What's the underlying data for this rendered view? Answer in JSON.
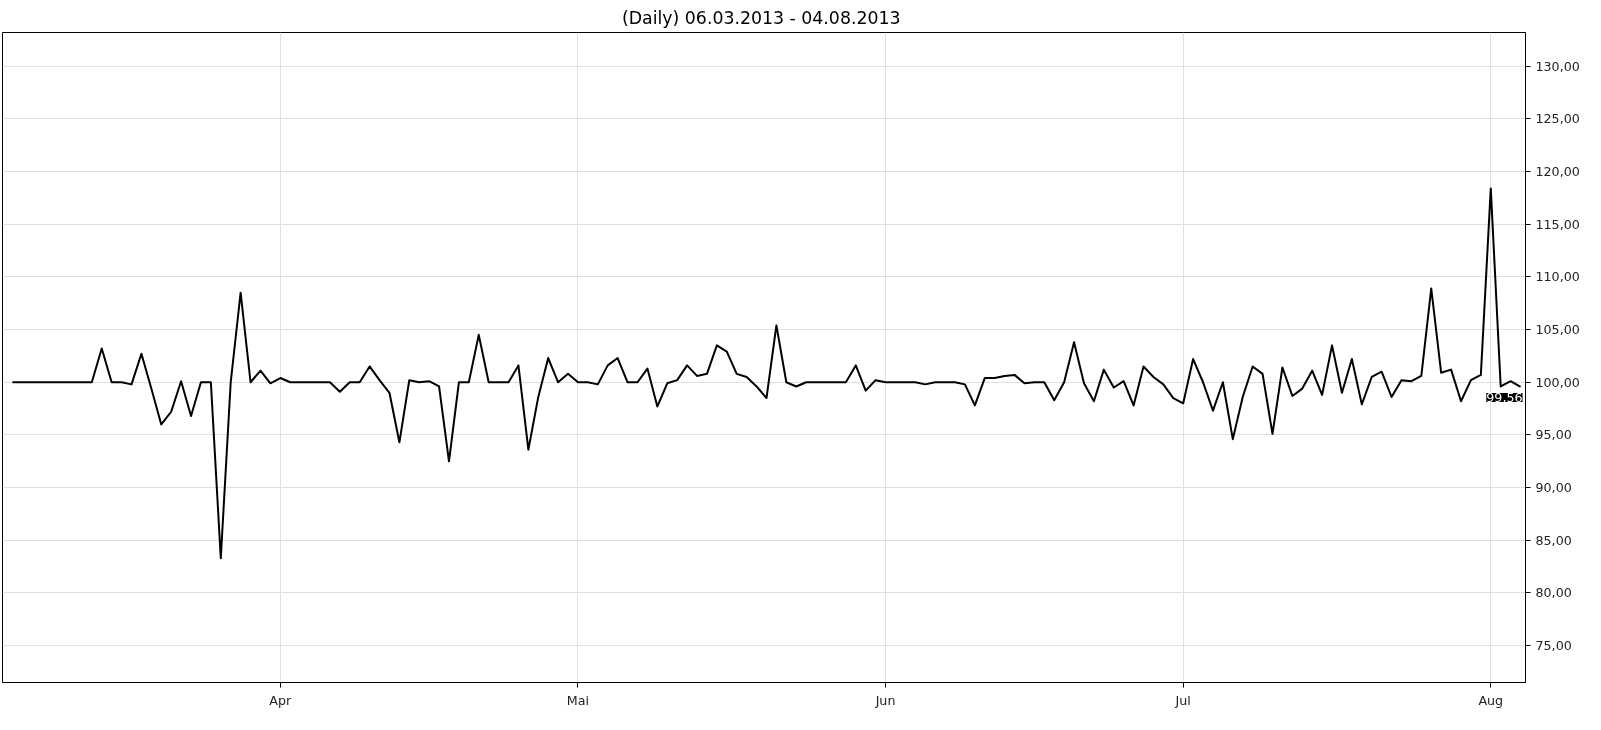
{
  "chart_data": {
    "type": "line",
    "title": "(Daily)  06.03.2013 - 04.08.2013",
    "x": [
      "2013-03-05",
      "2013-03-06",
      "2013-03-07",
      "2013-03-08",
      "2013-03-09",
      "2013-03-10",
      "2013-03-11",
      "2013-03-12",
      "2013-03-13",
      "2013-03-14",
      "2013-03-15",
      "2013-03-16",
      "2013-03-17",
      "2013-03-18",
      "2013-03-19",
      "2013-03-20",
      "2013-03-21",
      "2013-03-22",
      "2013-03-23",
      "2013-03-24",
      "2013-03-25",
      "2013-03-26",
      "2013-03-27",
      "2013-03-28",
      "2013-03-29",
      "2013-03-30",
      "2013-03-31",
      "2013-04-01",
      "2013-04-02",
      "2013-04-03",
      "2013-04-04",
      "2013-04-05",
      "2013-04-06",
      "2013-04-07",
      "2013-04-08",
      "2013-04-09",
      "2013-04-10",
      "2013-04-11",
      "2013-04-12",
      "2013-04-13",
      "2013-04-14",
      "2013-04-15",
      "2013-04-16",
      "2013-04-17",
      "2013-04-18",
      "2013-04-19",
      "2013-04-20",
      "2013-04-21",
      "2013-04-22",
      "2013-04-23",
      "2013-04-24",
      "2013-04-25",
      "2013-04-26",
      "2013-04-27",
      "2013-04-28",
      "2013-04-29",
      "2013-04-30",
      "2013-05-01",
      "2013-05-02",
      "2013-05-03",
      "2013-05-04",
      "2013-05-05",
      "2013-05-06",
      "2013-05-07",
      "2013-05-08",
      "2013-05-09",
      "2013-05-10",
      "2013-05-11",
      "2013-05-12",
      "2013-05-13",
      "2013-05-14",
      "2013-05-15",
      "2013-05-16",
      "2013-05-17",
      "2013-05-18",
      "2013-05-19",
      "2013-05-20",
      "2013-05-21",
      "2013-05-22",
      "2013-05-23",
      "2013-05-24",
      "2013-05-25",
      "2013-05-26",
      "2013-05-27",
      "2013-05-28",
      "2013-05-29",
      "2013-05-30",
      "2013-05-31",
      "2013-06-01",
      "2013-06-02",
      "2013-06-03",
      "2013-06-04",
      "2013-06-05",
      "2013-06-06",
      "2013-06-07",
      "2013-06-08",
      "2013-06-09",
      "2013-06-10",
      "2013-06-11",
      "2013-06-12",
      "2013-06-13",
      "2013-06-14",
      "2013-06-15",
      "2013-06-16",
      "2013-06-17",
      "2013-06-18",
      "2013-06-19",
      "2013-06-20",
      "2013-06-21",
      "2013-06-22",
      "2013-06-23",
      "2013-06-24",
      "2013-06-25",
      "2013-06-26",
      "2013-06-27",
      "2013-06-28",
      "2013-06-29",
      "2013-06-30",
      "2013-07-01",
      "2013-07-02",
      "2013-07-03",
      "2013-07-04",
      "2013-07-05",
      "2013-07-06",
      "2013-07-07",
      "2013-07-08",
      "2013-07-09",
      "2013-07-10",
      "2013-07-11",
      "2013-07-12",
      "2013-07-13",
      "2013-07-14",
      "2013-07-15",
      "2013-07-16",
      "2013-07-17",
      "2013-07-18",
      "2013-07-19",
      "2013-07-20",
      "2013-07-21",
      "2013-07-22",
      "2013-07-23",
      "2013-07-24",
      "2013-07-25",
      "2013-07-26",
      "2013-07-27",
      "2013-07-28",
      "2013-07-29",
      "2013-07-30",
      "2013-07-31",
      "2013-08-01",
      "2013-08-02",
      "2013-08-03",
      "2013-08-04"
    ],
    "series": [
      {
        "color": "#000000",
        "values": [
          100,
          100,
          100,
          100,
          100,
          100,
          100,
          100,
          100,
          103.2,
          100,
          100,
          99.8,
          102.7,
          99.4,
          96.0,
          97.2,
          100.1,
          96.8,
          100,
          100,
          83.3,
          100,
          108.5,
          100,
          101.1,
          99.9,
          100.4,
          100,
          100,
          100,
          100,
          100,
          99.1,
          100,
          100,
          101.5,
          100.2,
          99.0,
          94.3,
          100.2,
          100,
          100.1,
          99.6,
          92.5,
          100,
          100,
          104.5,
          100,
          100,
          100,
          101.6,
          93.6,
          98.6,
          102.3,
          100,
          100.8,
          100,
          100,
          99.8,
          101.6,
          102.3,
          100,
          100,
          101.3,
          97.7,
          99.9,
          100.2,
          101.6,
          100.6,
          100.8,
          103.5,
          102.9,
          100.8,
          100.5,
          99.6,
          98.5,
          105.4,
          100,
          99.6,
          100,
          100,
          100,
          100,
          100,
          101.6,
          99.2,
          100.2,
          100,
          100,
          100,
          100,
          99.8,
          100,
          100,
          100,
          99.8,
          97.8,
          100.4,
          100.4,
          100.6,
          100.7,
          99.9,
          100,
          100,
          98.3,
          100,
          103.8,
          99.9,
          98.2,
          101.2,
          99.5,
          100.1,
          97.8,
          101.5,
          100.5,
          99.8,
          98.5,
          98.0,
          102.2,
          100,
          97.3,
          100,
          94.6,
          98.6,
          101.5,
          100.8,
          95.1,
          101.4,
          98.7,
          99.4,
          101.1,
          98.8,
          103.5,
          99.0,
          102.2,
          97.9,
          100.5,
          101.0,
          98.6,
          100.2,
          100.1,
          100.6,
          108.9,
          100.9,
          101.2,
          98.2,
          100.2,
          100.7,
          118.4,
          99.6,
          100.1,
          99.56
        ]
      }
    ],
    "xlim": [
      "2013-03-04",
      "2013-08-04T12:00"
    ],
    "xticks": [
      {
        "value": "2013-04-01",
        "label": "Apr"
      },
      {
        "value": "2013-05-01",
        "label": "Mai"
      },
      {
        "value": "2013-06-01",
        "label": "Jun"
      },
      {
        "value": "2013-07-01",
        "label": "Jul"
      },
      {
        "value": "2013-08-01",
        "label": "Aug"
      }
    ],
    "ylim": [
      71.5,
      133.2
    ],
    "yticks": [
      {
        "value": 75,
        "label": "75,00"
      },
      {
        "value": 80,
        "label": "80,00"
      },
      {
        "value": 85,
        "label": "85,00"
      },
      {
        "value": 90,
        "label": "90,00"
      },
      {
        "value": 95,
        "label": "95,00"
      },
      {
        "value": 100,
        "label": "100,00"
      },
      {
        "value": 105,
        "label": "105,00"
      },
      {
        "value": 110,
        "label": "110,00"
      },
      {
        "value": 115,
        "label": "115,00"
      },
      {
        "value": 120,
        "label": "120,00"
      },
      {
        "value": 125,
        "label": "125,00"
      },
      {
        "value": 130,
        "label": "130,00"
      }
    ],
    "grid": true,
    "line_style": "solid",
    "annotations": [
      {
        "text": "99,56",
        "x": "2013-08-04",
        "y": 99.56
      }
    ]
  }
}
